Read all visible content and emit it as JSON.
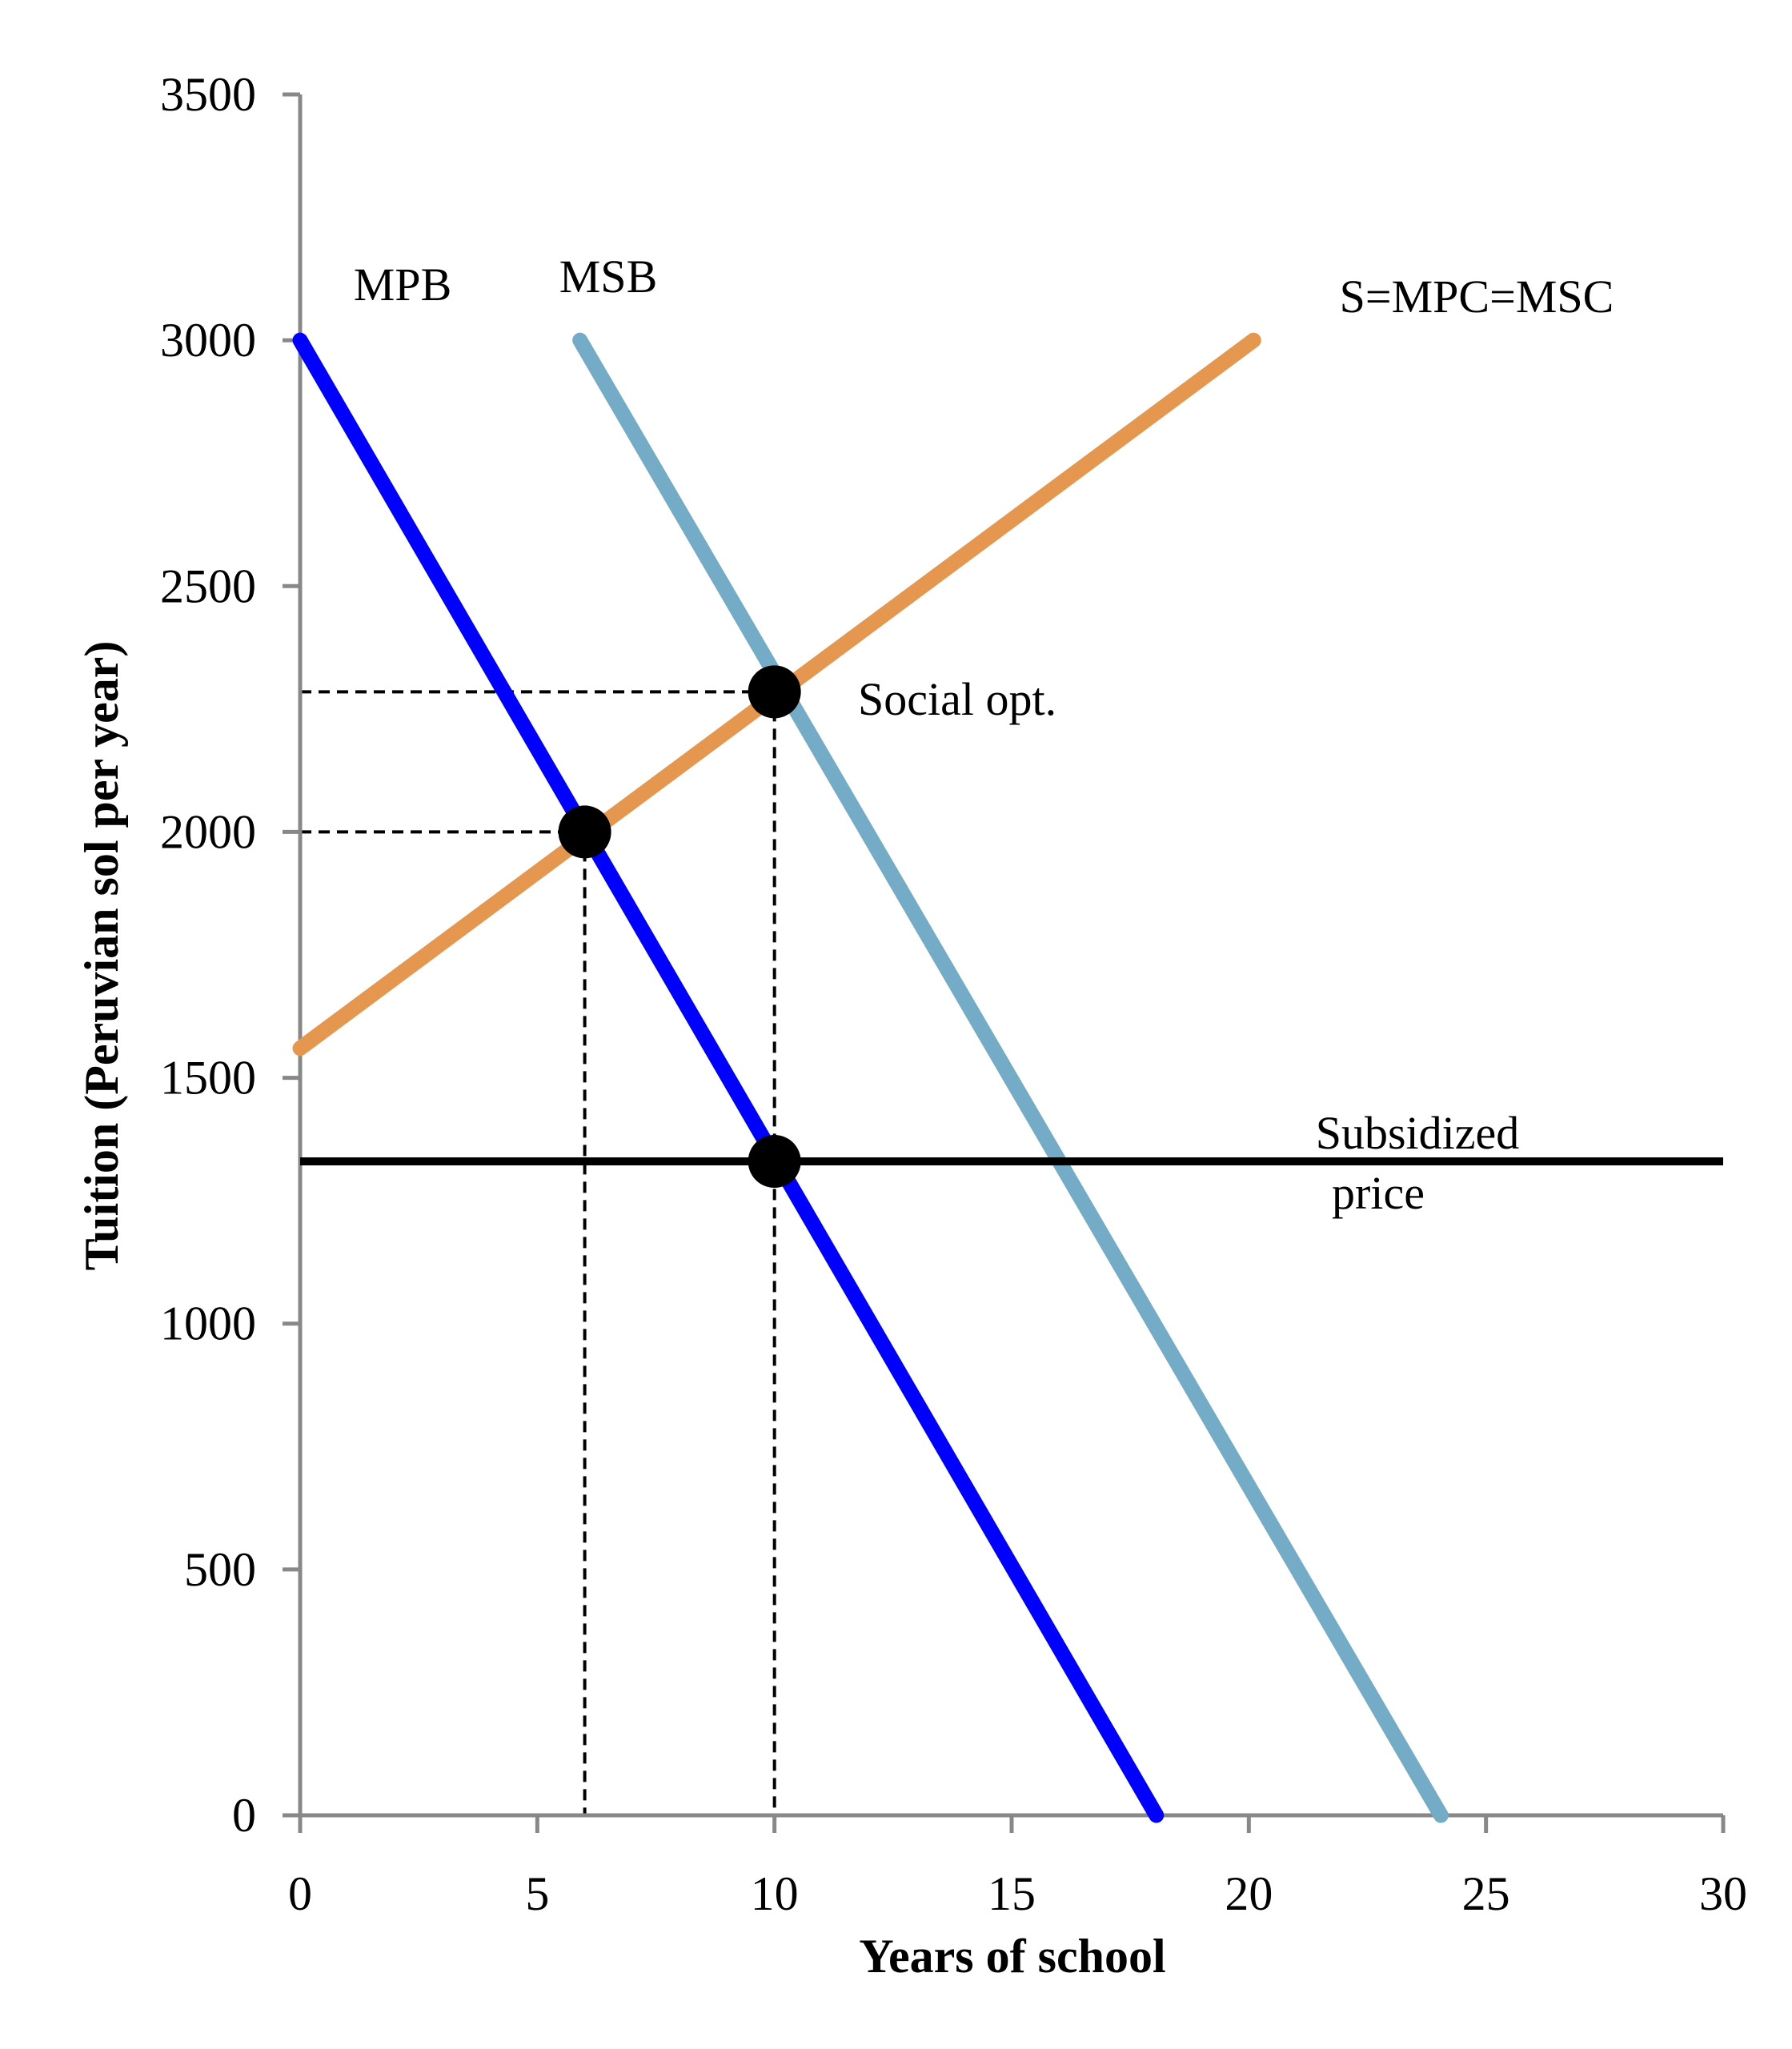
{
  "chart_data": {
    "type": "line",
    "title": "",
    "xlabel": "Years of school",
    "ylabel": "Tuition (Peruvian sol per year)",
    "xlim": [
      0,
      30
    ],
    "ylim": [
      0,
      3500
    ],
    "xticks": [
      0,
      5,
      10,
      15,
      20,
      25,
      30
    ],
    "yticks": [
      0,
      500,
      1000,
      1500,
      2000,
      2500,
      3000,
      3500
    ],
    "grid": false,
    "legend": "none",
    "series": [
      {
        "name": "MPB",
        "x": [
          0,
          18.05
        ],
        "y": [
          3000,
          0
        ],
        "color": "#0000ff"
      },
      {
        "name": "MSB",
        "x": [
          5.9,
          24.05
        ],
        "y": [
          3000,
          0
        ],
        "color": "#74abc7"
      },
      {
        "name": "S=MPC=MSC",
        "x": [
          0,
          20.1
        ],
        "y": [
          1560,
          3000
        ],
        "color": "#e5974f"
      },
      {
        "name": "Subsidized price",
        "x": [
          0,
          30
        ],
        "y": [
          1330,
          1330
        ],
        "color": "#000000"
      }
    ],
    "points": [
      {
        "name": "private-equilibrium",
        "x": 6,
        "y": 2000
      },
      {
        "name": "social-optimum",
        "x": 10,
        "y": 2285
      },
      {
        "name": "subsidized-point",
        "x": 10,
        "y": 1330
      }
    ],
    "reference_lines": [
      {
        "name": "private-equilibrium",
        "x": 6,
        "y": 2000
      },
      {
        "name": "social-optimum",
        "x": 10,
        "y": 2285
      }
    ],
    "annotations": {
      "mpb": "MPB",
      "msb": "MSB",
      "supply": "S=MPC=MSC",
      "social_opt": "Social opt.",
      "subsidized_line1": "Subsidized",
      "subsidized_line2": "price"
    },
    "colors": {
      "axis": "#888888",
      "mpb": "#0000ff",
      "msb": "#74abc7",
      "supply": "#e5974f",
      "subsidy": "#000000"
    }
  }
}
